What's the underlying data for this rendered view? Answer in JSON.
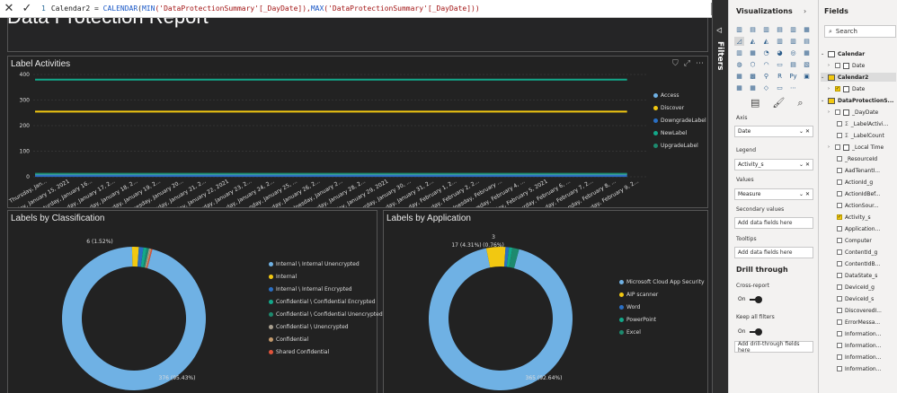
{
  "formula": {
    "line_no": "1",
    "prefix": "Calendar2 = ",
    "fn1": "CALENDAR",
    "mid1": "(",
    "fn2": "MIN",
    "arg1": "('DataProtectionSummary'[_DayDate]),",
    "fn3": "MAX",
    "arg2": "('DataProtectionSummary'[_DayDate]))",
    "cancel_icon": "close-icon",
    "commit_icon": "check-icon"
  },
  "report_title": "Data Protection Report",
  "label_activities": {
    "title": "Label Activities",
    "chart_data": {
      "type": "line",
      "title": "Label Activities",
      "ylim": [
        0,
        400
      ],
      "yticks": [
        "0",
        "100",
        "200",
        "300",
        "400"
      ],
      "x": [
        "Thursday, Jan...",
        "Friday, January 15, 2021",
        "Saturday, January 16...",
        "Sunday, January 17, 2...",
        "Monday, January 18, 2...",
        "Tuesday, January 19, 2...",
        "Wednesday, January 20...",
        "Thursday, January 21, 2...",
        "Friday, January 22, 2021",
        "Saturday, January 23, 2...",
        "Sunday, January 24, 2...",
        "Monday, January 25, ...",
        "Tuesday, January 26, 2...",
        "Wednesday, January 2...",
        "Thursday, January 28, 2...",
        "Friday, January 29, 2021",
        "Saturday, January 30, ...",
        "Sunday, January 31, 2...",
        "Monday, February 1, 2...",
        "Tuesday, February 2, 2...",
        "Wednesday, February ...",
        "Thursday, February 4, ...",
        "Friday, February 5, 2021",
        "Saturday, February 6, ...",
        "Sunday, February 7, 2...",
        "Monday, February 8, ...",
        "Tuesday, February 9, 2..."
      ],
      "series": [
        {
          "name": "Access",
          "color": "#6fb1e4",
          "values": [
            9,
            9,
            9,
            9,
            9,
            9,
            9,
            9,
            9,
            9,
            9,
            9,
            9,
            9,
            9,
            9,
            9,
            9,
            9,
            9,
            9,
            9,
            9,
            9,
            9,
            9,
            9
          ]
        },
        {
          "name": "Discover",
          "color": "#f2c811",
          "values": [
            255,
            255,
            255,
            255,
            255,
            255,
            255,
            255,
            255,
            255,
            255,
            255,
            255,
            255,
            255,
            255,
            255,
            255,
            255,
            255,
            255,
            255,
            255,
            255,
            255,
            255,
            255
          ]
        },
        {
          "name": "DowngradeLabel",
          "color": "#2a6fc4",
          "values": [
            3,
            3,
            3,
            3,
            3,
            3,
            3,
            3,
            3,
            3,
            3,
            3,
            3,
            3,
            3,
            3,
            3,
            3,
            3,
            3,
            3,
            3,
            3,
            3,
            3,
            3,
            3
          ]
        },
        {
          "name": "NewLabel",
          "color": "#13a88a",
          "values": [
            380,
            380,
            380,
            380,
            380,
            380,
            380,
            380,
            380,
            380,
            380,
            380,
            380,
            380,
            380,
            380,
            380,
            380,
            380,
            380,
            380,
            380,
            380,
            380,
            380,
            380,
            380
          ]
        },
        {
          "name": "UpgradeLabel",
          "color": "#1d8a6e",
          "values": [
            12,
            12,
            12,
            12,
            12,
            12,
            12,
            12,
            12,
            12,
            12,
            12,
            12,
            12,
            12,
            12,
            12,
            12,
            12,
            12,
            12,
            12,
            12,
            12,
            12,
            12,
            12
          ]
        }
      ],
      "legend_position": "right",
      "grid": true
    }
  },
  "labels_by_classification": {
    "title": "Labels by Classification",
    "chart_data": {
      "type": "pie",
      "title": "Labels by Classification",
      "slices": [
        {
          "name": "Internal \\ Internal Unencrypted",
          "value": 376,
          "color": "#6fb1e4"
        },
        {
          "name": "Internal",
          "value": 6,
          "color": "#f2c811"
        },
        {
          "name": "Internal \\ Internal Encrypted",
          "value": 4,
          "color": "#2a6fc4"
        },
        {
          "name": "Confidential \\ Confidential Encrypted",
          "value": 3,
          "color": "#13a88a"
        },
        {
          "name": "Confidential \\ Confidential Unencrypted",
          "value": 2,
          "color": "#1d8a6e"
        },
        {
          "name": "Confidential \\ Unencrypted",
          "value": 1,
          "color": "#a89f8f"
        },
        {
          "name": "Confidential",
          "value": 1,
          "color": "#c49a6c"
        },
        {
          "name": "Shared Confidential",
          "value": 1,
          "color": "#e0533b"
        }
      ],
      "data_labels": [
        "6 (1.52%)",
        "376 (95.43%)"
      ],
      "legend_position": "right"
    }
  },
  "labels_by_application": {
    "title": "Labels by Application",
    "chart_data": {
      "type": "pie",
      "title": "Labels by Application",
      "slices": [
        {
          "name": "Microsoft Cloud App Security",
          "value": 365,
          "color": "#6fb1e4"
        },
        {
          "name": "AIP scanner",
          "value": 17,
          "color": "#f2c811"
        },
        {
          "name": "Word",
          "value": 3,
          "color": "#2a6fc4"
        },
        {
          "name": "PowerPoint",
          "value": 3,
          "color": "#13a88a"
        },
        {
          "name": "Excel",
          "value": 6,
          "color": "#1d8a6e"
        }
      ],
      "data_labels": [
        "17 (4.31%)",
        "(0.76%)",
        "3",
        "365 (92.64%)"
      ],
      "legend_position": "right"
    }
  },
  "visualizations": {
    "title": "Visualizations",
    "axis_label": "Axis",
    "axis_value": "Date",
    "legend_label": "Legend",
    "legend_value": "Activity_s",
    "values_label": "Values",
    "values_value": "Measure",
    "secondary_label": "Secondary values",
    "secondary_placeholder": "Add data fields here",
    "tooltips_label": "Tooltips",
    "tooltips_placeholder": "Add data fields here",
    "drill_title": "Drill through",
    "cross_report": "Cross-report",
    "cross_state": "On",
    "keep_filters": "Keep all filters",
    "keep_state": "On",
    "drill_add": "Add drill-through fields here"
  },
  "filters_label": "Filters",
  "fields": {
    "title": "Fields",
    "search_placeholder": "Search",
    "items": [
      {
        "label": "Calendar",
        "kind": "table"
      },
      {
        "label": "Date",
        "kind": "date"
      },
      {
        "label": "Calendar2",
        "kind": "table-y"
      },
      {
        "label": "Date",
        "kind": "date-chk"
      },
      {
        "label": "DataProtectionS...",
        "kind": "table-y"
      },
      {
        "label": "_DayDate",
        "kind": "date"
      },
      {
        "label": "_LabelActivi...",
        "kind": "sigma"
      },
      {
        "label": "_LabelCount",
        "kind": "sigma"
      },
      {
        "label": "_Local Time",
        "kind": "date"
      },
      {
        "label": "_ResourceId",
        "kind": "plain"
      },
      {
        "label": "AadTenantI...",
        "kind": "plain"
      },
      {
        "label": "ActionId_g",
        "kind": "plain"
      },
      {
        "label": "ActionIdBef...",
        "kind": "plain"
      },
      {
        "label": "ActionSour...",
        "kind": "plain"
      },
      {
        "label": "Activity_s",
        "kind": "chk"
      },
      {
        "label": "Application...",
        "kind": "plain"
      },
      {
        "label": "Computer",
        "kind": "plain"
      },
      {
        "label": "ContentId_g",
        "kind": "plain"
      },
      {
        "label": "ContentIdB...",
        "kind": "plain"
      },
      {
        "label": "DataState_s",
        "kind": "plain"
      },
      {
        "label": "DeviceId_g",
        "kind": "plain"
      },
      {
        "label": "DeviceId_s",
        "kind": "plain"
      },
      {
        "label": "DiscoveredI...",
        "kind": "plain"
      },
      {
        "label": "ErrorMessa...",
        "kind": "plain"
      },
      {
        "label": "Information...",
        "kind": "plain"
      },
      {
        "label": "Information...",
        "kind": "plain"
      },
      {
        "label": "Information...",
        "kind": "plain"
      },
      {
        "label": "Information...",
        "kind": "plain"
      }
    ]
  }
}
